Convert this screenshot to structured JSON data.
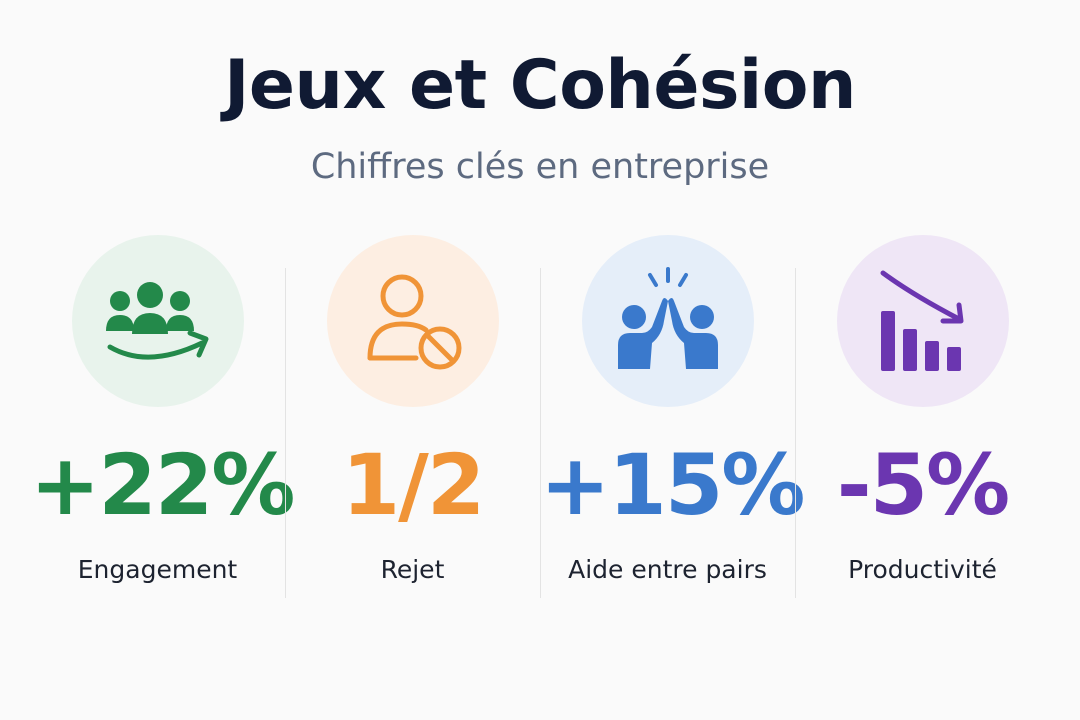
{
  "header": {
    "title": "Jeux et Cohésion",
    "subtitle": "Chiffres clés en entreprise"
  },
  "stats": [
    {
      "value": "+22%",
      "label": "Engagement",
      "icon": "group-growth-icon",
      "color": "#23894a",
      "bg": "#e8f3ec"
    },
    {
      "value": "1/2",
      "label": "Rejet",
      "icon": "user-block-icon",
      "color": "#f09437",
      "bg": "#fdeee2"
    },
    {
      "value": "+15%",
      "label": "Aide entre pairs",
      "icon": "high-five-icon",
      "color": "#3a79cc",
      "bg": "#e5eef9"
    },
    {
      "value": "-5%",
      "label": "Productivité",
      "icon": "bar-decline-icon",
      "color": "#6b36b0",
      "bg": "#efe6f6"
    }
  ]
}
